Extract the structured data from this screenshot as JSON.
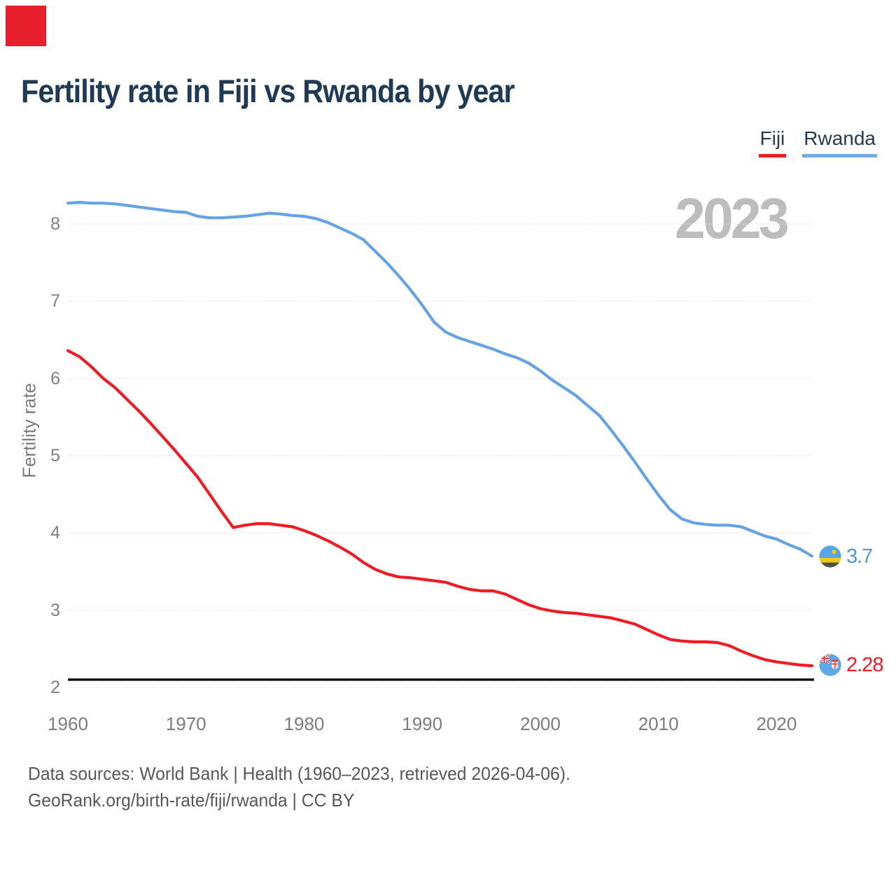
{
  "marker": {
    "color": "#e8202d"
  },
  "header": {
    "title": "Fertility rate in Fiji vs Rwanda by year"
  },
  "legend": {
    "fiji": {
      "label": "Fiji",
      "color": "#ee1c25"
    },
    "rwanda": {
      "label": "Rwanda",
      "color": "#74abe6"
    }
  },
  "watermark": "2023",
  "end_labels": {
    "rwanda": "3.7",
    "fiji": "2.28"
  },
  "footer": {
    "line1": "Data sources: World Bank | Health (1960–2023, retrieved 2026-04-06).",
    "line2": "GeoRank.org/birth-rate/fiji/rwanda | CC BY"
  },
  "chart_data": {
    "type": "line",
    "title": "Fertility rate in Fiji vs Rwanda by year",
    "xlabel": "",
    "ylabel": "Fertility rate",
    "xlim": [
      1960,
      2023
    ],
    "ylim": [
      2,
      8
    ],
    "x_ticks": [
      1960,
      1970,
      1980,
      1990,
      2000,
      2010,
      2020
    ],
    "y_ticks": [
      2,
      3,
      4,
      5,
      6,
      7,
      8
    ],
    "grid": "horizontal-dotted",
    "legend_position": "top-right",
    "reference_line": {
      "value": 2.1,
      "color": "#0a0a0a"
    },
    "x": [
      1960,
      1961,
      1962,
      1963,
      1964,
      1965,
      1966,
      1967,
      1968,
      1969,
      1970,
      1971,
      1972,
      1973,
      1974,
      1975,
      1976,
      1977,
      1978,
      1979,
      1980,
      1981,
      1982,
      1983,
      1984,
      1985,
      1986,
      1987,
      1988,
      1989,
      1990,
      1991,
      1992,
      1993,
      1994,
      1995,
      1996,
      1997,
      1998,
      1999,
      2000,
      2001,
      2002,
      2003,
      2004,
      2005,
      2006,
      2007,
      2008,
      2009,
      2010,
      2011,
      2012,
      2013,
      2014,
      2015,
      2016,
      2017,
      2018,
      2019,
      2020,
      2021,
      2022,
      2023
    ],
    "series": [
      {
        "name": "Fiji",
        "color": "#ee1c25",
        "final_value": 2.28,
        "values": [
          6.36,
          6.28,
          6.15,
          6.0,
          5.88,
          5.73,
          5.58,
          5.42,
          5.25,
          5.08,
          4.9,
          4.72,
          4.5,
          4.28,
          4.07,
          4.1,
          4.12,
          4.12,
          4.1,
          4.08,
          4.03,
          3.97,
          3.9,
          3.82,
          3.73,
          3.62,
          3.53,
          3.47,
          3.43,
          3.42,
          3.4,
          3.38,
          3.36,
          3.31,
          3.27,
          3.25,
          3.25,
          3.21,
          3.14,
          3.07,
          3.02,
          2.99,
          2.97,
          2.96,
          2.94,
          2.92,
          2.9,
          2.86,
          2.82,
          2.75,
          2.68,
          2.62,
          2.6,
          2.59,
          2.59,
          2.58,
          2.54,
          2.47,
          2.41,
          2.36,
          2.33,
          2.31,
          2.29,
          2.28
        ]
      },
      {
        "name": "Rwanda",
        "color": "#66a3e3",
        "final_value": 3.7,
        "values": [
          8.27,
          8.28,
          8.27,
          8.27,
          8.26,
          8.24,
          8.22,
          8.2,
          8.18,
          8.16,
          8.15,
          8.1,
          8.08,
          8.08,
          8.09,
          8.1,
          8.12,
          8.14,
          8.13,
          8.11,
          8.1,
          8.07,
          8.02,
          7.95,
          7.88,
          7.8,
          7.65,
          7.5,
          7.33,
          7.15,
          6.95,
          6.73,
          6.6,
          6.53,
          6.48,
          6.43,
          6.38,
          6.32,
          6.27,
          6.2,
          6.1,
          5.98,
          5.88,
          5.78,
          5.65,
          5.52,
          5.33,
          5.13,
          4.92,
          4.7,
          4.49,
          4.3,
          4.18,
          4.13,
          4.11,
          4.1,
          4.1,
          4.08,
          4.02,
          3.96,
          3.92,
          3.85,
          3.79,
          3.7
        ]
      }
    ]
  }
}
